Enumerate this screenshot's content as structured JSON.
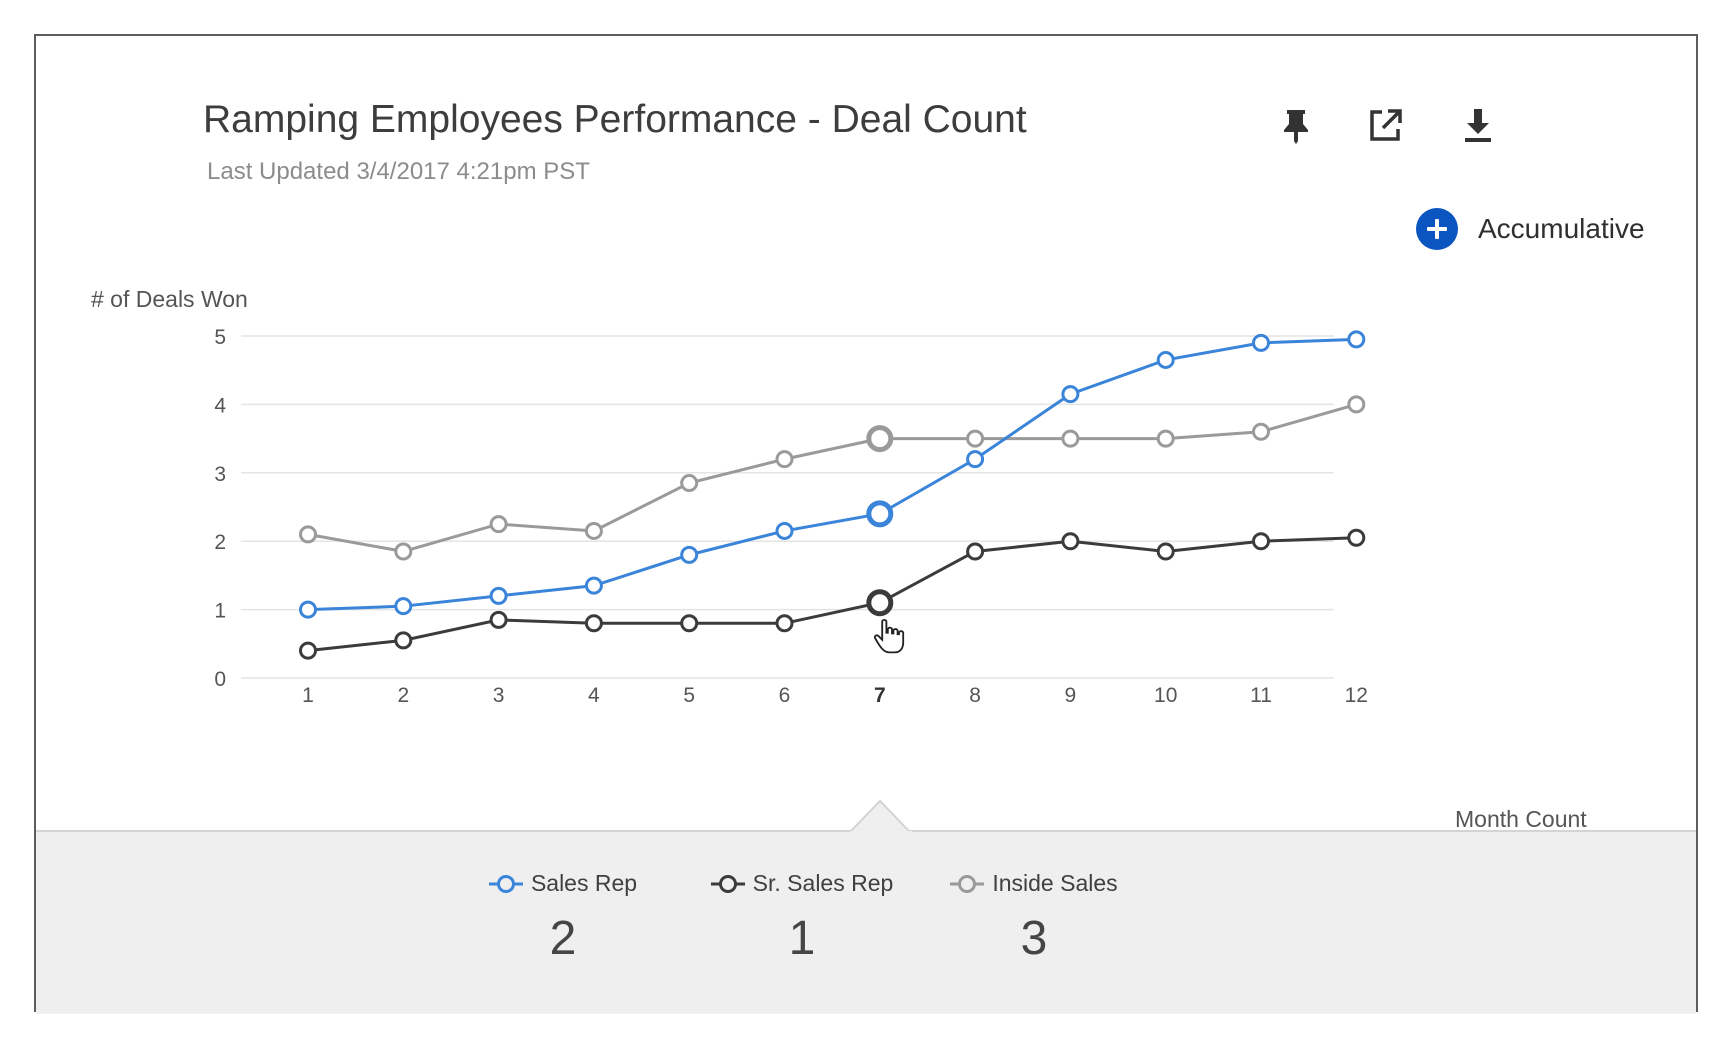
{
  "header": {
    "title": "Ramping Employees Performance - Deal Count",
    "last_updated": "Last Updated 3/4/2017 4:21pm PST"
  },
  "toolbar": {
    "pin_icon": "pin-icon",
    "open_icon": "open-in-new-icon",
    "download_icon": "download-icon"
  },
  "toggle": {
    "label": "Accumulative",
    "icon": "plus-circle-icon",
    "color": "#0a55c0"
  },
  "chart_data": {
    "type": "line",
    "ylabel": "# of Deals Won",
    "xlabel": "Month Count",
    "x": [
      1,
      2,
      3,
      4,
      5,
      6,
      7,
      8,
      9,
      10,
      11,
      12
    ],
    "ylim": [
      0,
      5
    ],
    "yticks": [
      0,
      1,
      2,
      3,
      4,
      5
    ],
    "grid": true,
    "highlight_x": 7,
    "series": [
      {
        "name": "Sales Rep",
        "color": "#3a84d9",
        "values": [
          1.0,
          1.05,
          1.2,
          1.35,
          1.8,
          2.15,
          2.4,
          3.2,
          4.15,
          4.65,
          4.9,
          4.95
        ]
      },
      {
        "name": "Sr. Sales Rep",
        "color": "#3b3b3b",
        "values": [
          0.4,
          0.55,
          0.85,
          0.8,
          0.8,
          0.8,
          1.1,
          1.85,
          2.0,
          1.85,
          2.0,
          2.05
        ]
      },
      {
        "name": "Inside Sales",
        "color": "#9a9a9a",
        "values": [
          2.1,
          1.85,
          2.25,
          2.15,
          2.85,
          3.2,
          3.5,
          3.5,
          3.5,
          3.5,
          3.6,
          4.0
        ]
      }
    ]
  },
  "tooltip": {
    "items": [
      {
        "name": "Sales Rep",
        "value": "2",
        "color": "#3a84d9"
      },
      {
        "name": "Sr. Sales Rep",
        "value": "1",
        "color": "#3b3b3b"
      },
      {
        "name": "Inside Sales",
        "value": "3",
        "color": "#9a9a9a"
      }
    ]
  }
}
